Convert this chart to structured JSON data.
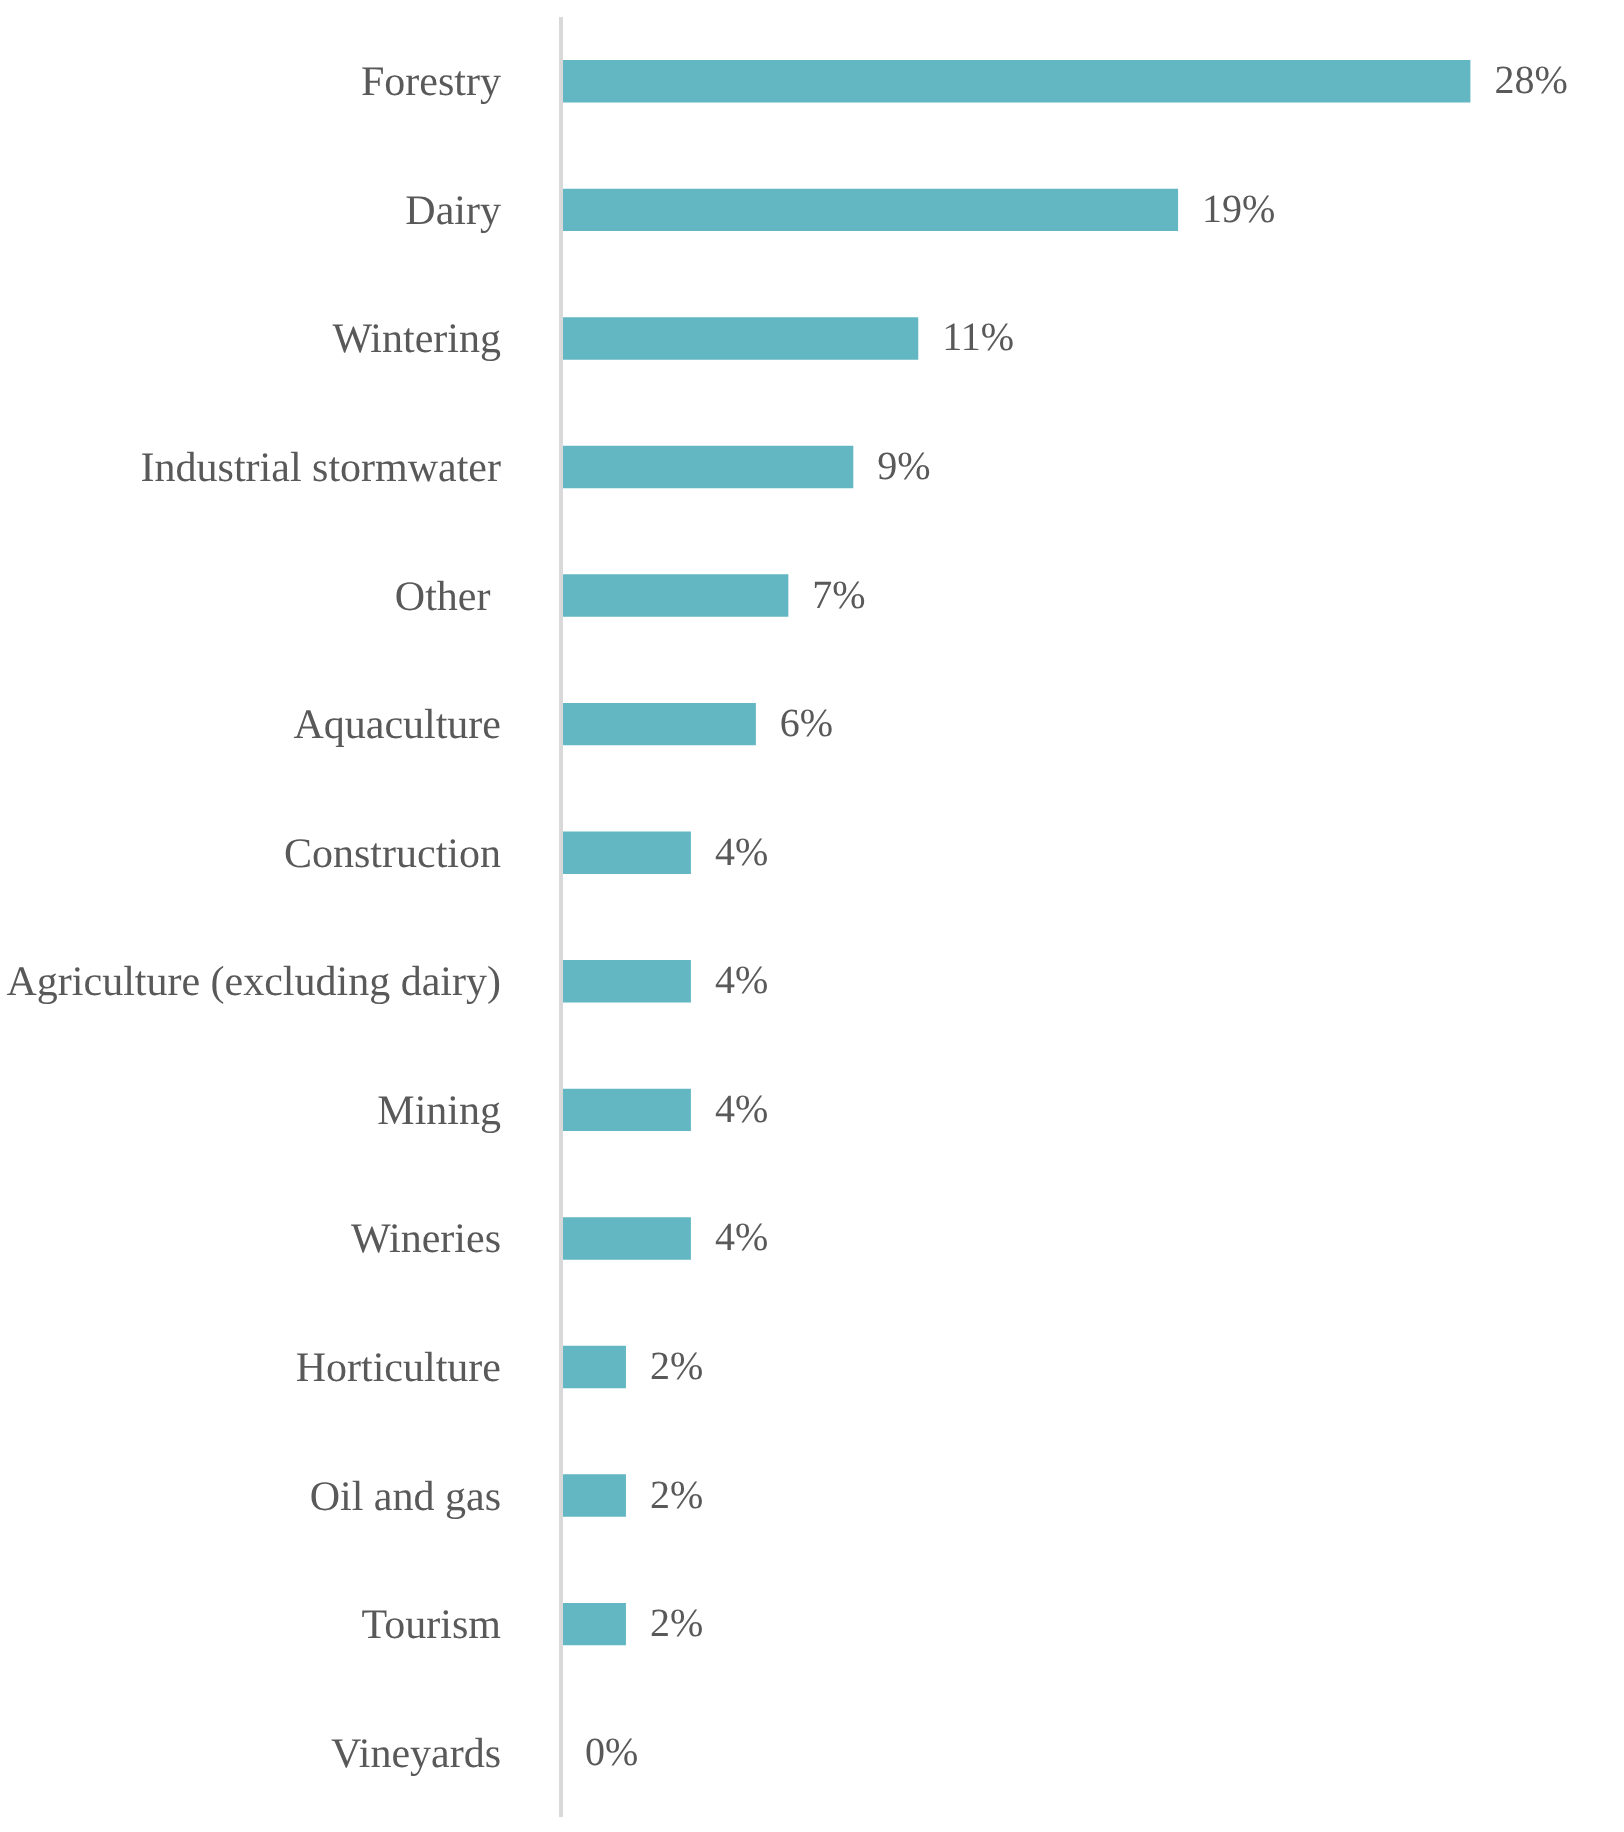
{
  "chart_data": {
    "type": "bar",
    "orientation": "horizontal",
    "data_labels": true,
    "categories": [
      "Forestry",
      "Dairy",
      "Wintering",
      "Industrial stormwater",
      "Other ",
      "Aquaculture",
      "Construction",
      "Agriculture (excluding dairy)",
      "Mining",
      "Wineries",
      "Horticulture",
      "Oil and gas",
      "Tourism",
      "Vineyards"
    ],
    "value_labels": [
      "28%",
      "19%",
      "11%",
      "9%",
      "7%",
      "6%",
      "4%",
      "4%",
      "4%",
      "4%",
      "2%",
      "2%",
      "2%",
      "0%"
    ],
    "values": [
      28,
      19,
      11,
      9,
      7,
      6,
      4,
      4,
      4,
      4,
      2,
      2,
      2,
      0
    ],
    "color": "#63b7c3"
  }
}
